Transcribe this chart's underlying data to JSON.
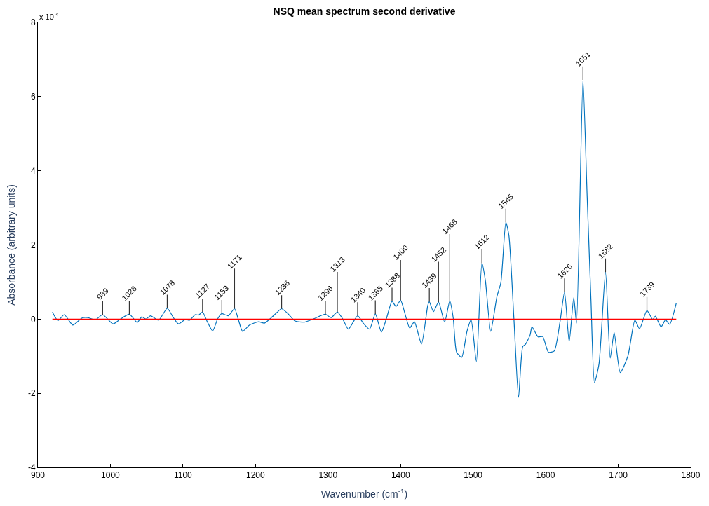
{
  "chart_data": {
    "type": "line",
    "title": "NSQ mean spectrum second derivative",
    "xlabel": "Wavenumber (cm$^{-1}$)",
    "ylabel": "Absorbance (arbitrary units)",
    "xlim": [
      900,
      1800
    ],
    "xticks": [
      900,
      1000,
      1100,
      1200,
      1300,
      1400,
      1500,
      1600,
      1700,
      1800
    ],
    "ylim": [
      -4,
      8
    ],
    "yticks": [
      -4,
      -2,
      0,
      2,
      4,
      6,
      8
    ],
    "marker": "none",
    "line_style": "solid",
    "series": [
      {
        "color": "#0072bd",
        "x": [
          920,
          927.7,
          936.4,
          948.2,
          960.9,
          968.8,
          979.2,
          989.3,
          1003.6,
          1013.1,
          1026.1,
          1036.9,
          1043.3,
          1048.9,
          1055.3,
          1066.4,
          1078.3,
          1086.8,
          1093.8,
          1103.3,
          1109,
          1117,
          1121.7,
          1127,
          1133,
          1140.9,
          1147.9,
          1153.6,
          1162.4,
          1171.1,
          1176.5,
          1182.2,
          1191.8,
          1204.3,
          1212.3,
          1220.2,
          1229.7,
          1236,
          1245.6,
          1254.5,
          1267.7,
          1280.4,
          1296.3,
          1304.2,
          1312.8,
          1320.1,
          1328,
          1340.8,
          1348.6,
          1357.2,
          1365.2,
          1373.5,
          1380.4,
          1388.2,
          1393.7,
          1400,
          1405.7,
          1412.6,
          1419,
          1428.8,
          1437.4,
          1439.6,
          1445.3,
          1452.3,
          1460.7,
          1467.8,
          1472.5,
          1477.2,
          1484.2,
          1491.5,
          1497.2,
          1504.5,
          1512.1,
          1516.9,
          1524.2,
          1532.8,
          1538.2,
          1545.1,
          1549.3,
          1556.3,
          1562.6,
          1568.4,
          1572.1,
          1578.5,
          1581.1,
          1589.6,
          1595.9,
          1603.8,
          1611.8,
          1619.7,
          1626,
          1632.4,
          1638.7,
          1642.5,
          1651.4,
          1657.1,
          1662.4,
          1667.3,
          1673.5,
          1682.5,
          1689,
          1694.4,
          1702.8,
          1713.4,
          1723,
          1729.4,
          1739.6,
          1747.6,
          1751.1,
          1759.1,
          1765.2,
          1770.9,
          1780
        ],
        "values": [
          0.19,
          -0.04,
          0.12,
          -0.16,
          0.03,
          0.04,
          -0.02,
          0.12,
          -0.13,
          -0.01,
          0.13,
          -0.09,
          0.06,
          0.0,
          0.09,
          -0.03,
          0.29,
          0.04,
          -0.13,
          -0.01,
          -0.03,
          0.12,
          0.11,
          0.19,
          -0.05,
          -0.32,
          0.01,
          0.15,
          0.09,
          0.28,
          -0.02,
          -0.33,
          -0.16,
          -0.07,
          -0.11,
          0.01,
          0.18,
          0.28,
          0.13,
          -0.05,
          -0.08,
          0.01,
          0.13,
          0.04,
          0.19,
          0.01,
          -0.27,
          0.09,
          -0.11,
          -0.27,
          0.14,
          -0.35,
          0.01,
          0.48,
          0.34,
          0.51,
          0.17,
          -0.24,
          -0.07,
          -0.67,
          0.36,
          0.47,
          0.2,
          0.46,
          -0.08,
          0.49,
          0.04,
          -0.89,
          -1.03,
          -0.33,
          -0.02,
          -1.14,
          1.51,
          1.04,
          -0.33,
          0.61,
          0.98,
          2.61,
          2.26,
          -0.02,
          -2.11,
          -0.74,
          -0.68,
          -0.43,
          -0.21,
          -0.48,
          -0.47,
          -0.89,
          -0.86,
          -0.08,
          0.73,
          -0.61,
          0.58,
          -0.11,
          6.45,
          3.35,
          0.54,
          -1.71,
          -1.21,
          1.27,
          -1.05,
          -0.36,
          -1.44,
          -0.99,
          -0.03,
          -0.26,
          0.23,
          -0.01,
          0.08,
          -0.21,
          -0.02,
          -0.14,
          0.43
        ]
      }
    ],
    "ref_lines": [
      {
        "axis": "y",
        "value": 0,
        "color": "#ff0000"
      }
    ],
    "annotations": [
      "x 10$^{-4}$",
      {
        "text": "989",
        "x": 989.3,
        "y": 0.12
      },
      {
        "text": "1026",
        "x": 1026.1,
        "y": 0.13
      },
      {
        "text": "1078",
        "x": 1078.3,
        "y": 0.29
      },
      {
        "text": "1127",
        "x": 1127,
        "y": 0.19
      },
      {
        "text": "1153",
        "x": 1153.6,
        "y": 0.15
      },
      {
        "text": "1171",
        "x": 1171.1,
        "y": 0.28
      },
      {
        "text": "1236",
        "x": 1236,
        "y": 0.28
      },
      {
        "text": "1296",
        "x": 1296.3,
        "y": 0.13
      },
      {
        "text": "1313",
        "x": 1312.8,
        "y": 0.19
      },
      {
        "text": "1340",
        "x": 1340.8,
        "y": 0.09
      },
      {
        "text": "1365",
        "x": 1365.2,
        "y": 0.14
      },
      {
        "text": "1388",
        "x": 1388.2,
        "y": 0.48
      },
      {
        "text": "1400",
        "x": 1400,
        "y": 0.51
      },
      {
        "text": "1439",
        "x": 1439.6,
        "y": 0.47
      },
      {
        "text": "1452",
        "x": 1452.3,
        "y": 0.46
      },
      {
        "text": "1468",
        "x": 1467.8,
        "y": 0.49
      },
      {
        "text": "1512",
        "x": 1512.1,
        "y": 1.51
      },
      {
        "text": "1545",
        "x": 1545.1,
        "y": 2.61
      },
      {
        "text": "1626",
        "x": 1626,
        "y": 0.73
      },
      {
        "text": "1651",
        "x": 1651.4,
        "y": 6.45
      },
      {
        "text": "1682",
        "x": 1682.5,
        "y": 1.27
      },
      {
        "text": "1739",
        "x": 1739.6,
        "y": 0.23
      }
    ]
  }
}
